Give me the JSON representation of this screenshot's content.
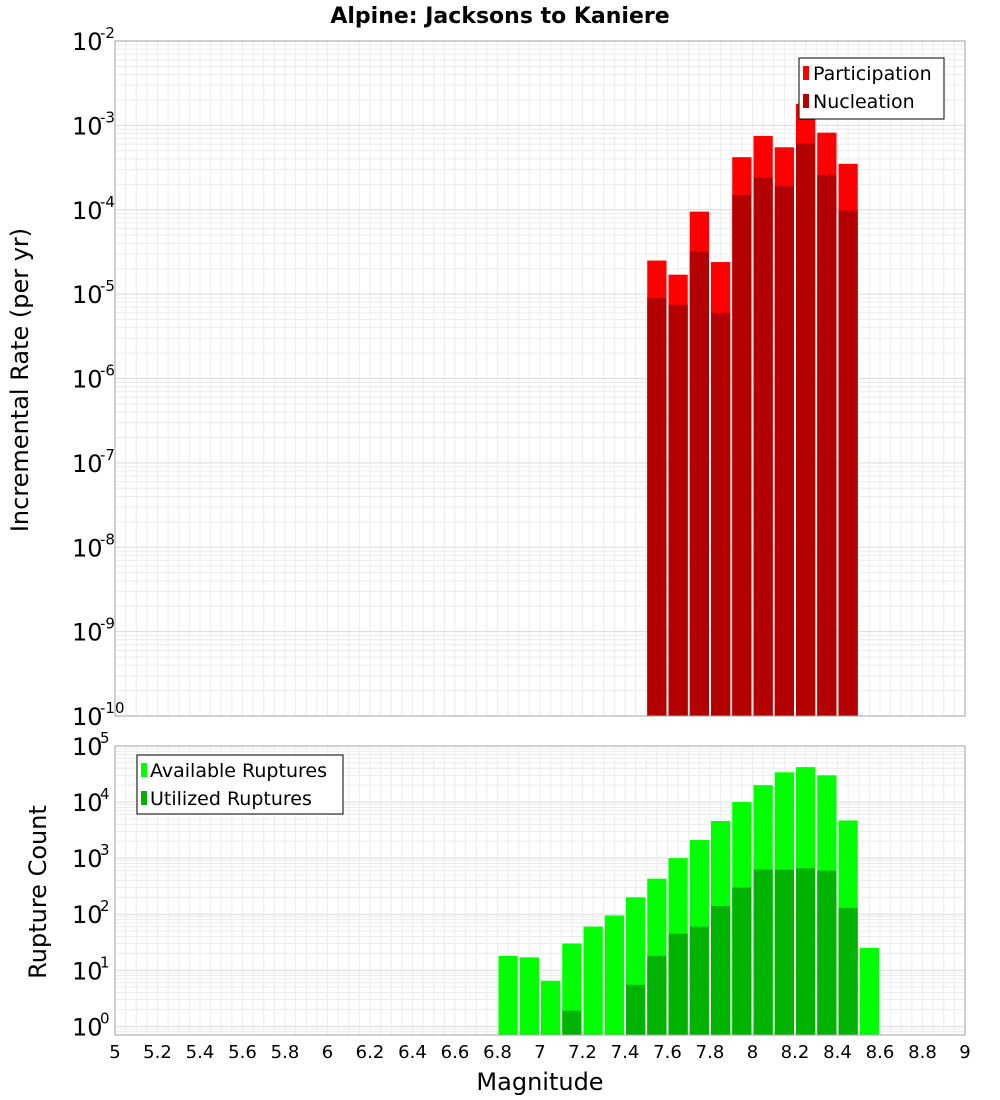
{
  "chart_data": [
    {
      "type": "bar",
      "title": "Alpine: Jacksons to Kaniere",
      "xlabel": "",
      "ylabel": "Incremental Rate (per yr)",
      "y_scale": "log",
      "ylim": [
        1e-10,
        0.01
      ],
      "xlim": [
        5,
        9
      ],
      "grid": true,
      "legend_position": "top-right",
      "bar_width": 0.1,
      "y_ticks": [
        {
          "base": "10",
          "exp": "-2"
        },
        {
          "base": "10",
          "exp": "-3"
        },
        {
          "base": "10",
          "exp": "-4"
        },
        {
          "base": "10",
          "exp": "-5"
        },
        {
          "base": "10",
          "exp": "-6"
        },
        {
          "base": "10",
          "exp": "-7"
        },
        {
          "base": "10",
          "exp": "-8"
        },
        {
          "base": "10",
          "exp": "-9"
        },
        {
          "base": "10",
          "exp": "-10"
        }
      ],
      "x": [
        7.55,
        7.65,
        7.75,
        7.85,
        7.95,
        8.05,
        8.15,
        8.25,
        8.35,
        8.45
      ],
      "series": [
        {
          "name": "Participation",
          "color": "#ff0000",
          "values": [
            2.5e-05,
            1.7e-05,
            9.5e-05,
            2.4e-05,
            0.00042,
            0.00075,
            0.00055,
            0.0018,
            0.00082,
            0.00035
          ]
        },
        {
          "name": "Nucleation",
          "color": "#b30000",
          "values": [
            9e-06,
            7.5e-06,
            3.2e-05,
            6e-06,
            0.00015,
            0.00024,
            0.00019,
            0.00061,
            0.00026,
            9.8e-05
          ]
        }
      ]
    },
    {
      "type": "bar",
      "title": "",
      "xlabel": "Magnitude",
      "ylabel": "Rupture Count",
      "y_scale": "log",
      "ylim": [
        0.7,
        100000.0
      ],
      "xlim": [
        5,
        9
      ],
      "grid": true,
      "legend_position": "top-left",
      "bar_width": 0.1,
      "x_ticks": [
        "5",
        "5.2",
        "5.4",
        "5.6",
        "5.8",
        "6",
        "6.2",
        "6.4",
        "6.6",
        "6.8",
        "7",
        "7.2",
        "7.4",
        "7.6",
        "7.8",
        "8",
        "8.2",
        "8.4",
        "8.6",
        "8.8",
        "9"
      ],
      "y_ticks": [
        {
          "base": "10",
          "exp": "5"
        },
        {
          "base": "10",
          "exp": "4"
        },
        {
          "base": "10",
          "exp": "3"
        },
        {
          "base": "10",
          "exp": "2"
        },
        {
          "base": "10",
          "exp": "1"
        },
        {
          "base": "10",
          "exp": "0"
        }
      ],
      "x": [
        6.85,
        6.95,
        7.05,
        7.15,
        7.25,
        7.35,
        7.45,
        7.55,
        7.65,
        7.75,
        7.85,
        7.95,
        8.05,
        8.15,
        8.25,
        8.35,
        8.45,
        8.55
      ],
      "series": [
        {
          "name": "Available Ruptures",
          "color": "#00ff00",
          "values": [
            18,
            17,
            6.5,
            30,
            60,
            95,
            200,
            430,
            1000,
            2100,
            4600,
            10000,
            20000,
            34000,
            42000,
            30000,
            4700,
            25
          ]
        },
        {
          "name": "Utilized Ruptures",
          "color": "#00b300",
          "values": [
            null,
            null,
            null,
            1.9,
            null,
            null,
            5.5,
            18,
            45,
            60,
            140,
            300,
            630,
            620,
            660,
            600,
            130,
            null
          ]
        }
      ]
    }
  ]
}
